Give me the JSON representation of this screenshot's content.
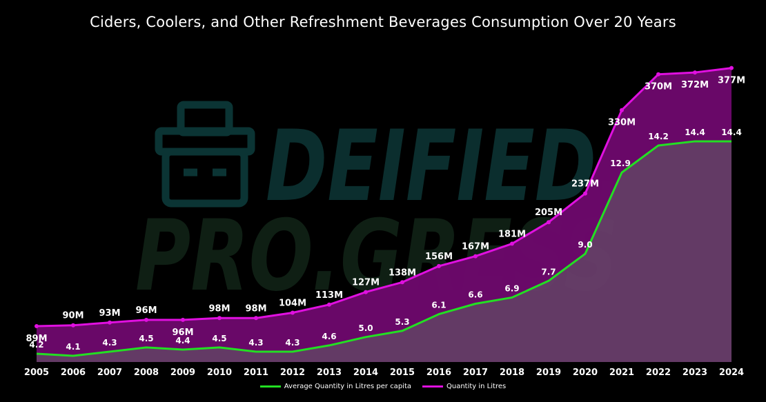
{
  "colors": {
    "background": "#000000",
    "per_capita_line": "#22e022",
    "quantity_line": "#e010e0",
    "quantity_area": "#6b3f6e",
    "band_fill": "#6a0068"
  },
  "watermark": {
    "line1": "DEIFIED.",
    "line2": "PRO.GRESS"
  },
  "chart_data": {
    "type": "line",
    "title": "Ciders, Coolers, and Other Refreshment Beverages Consumption Over 20 Years",
    "x": [
      "2005",
      "2006",
      "2007",
      "2008",
      "2009",
      "2010",
      "2011",
      "2012",
      "2013",
      "2014",
      "2015",
      "2016",
      "2017",
      "2018",
      "2019",
      "2020",
      "2021",
      "2022",
      "2023",
      "2024"
    ],
    "series": [
      {
        "name": "Average Quantity in Litres per capita",
        "values": [
          4.2,
          4.1,
          4.3,
          4.5,
          4.4,
          4.5,
          4.3,
          4.3,
          4.6,
          5.0,
          5.3,
          6.1,
          6.6,
          6.9,
          7.7,
          9.0,
          12.9,
          14.2,
          14.4,
          14.4
        ],
        "labels": [
          "4.2",
          "4.1",
          "4.3",
          "4.5",
          "4.4",
          "4.5",
          "4.3",
          "4.3",
          "4.6",
          "5.0",
          "5.3",
          "6.1",
          "6.6",
          "6.9",
          "7.7",
          "9.0",
          "12.9",
          "14.2",
          "14.4",
          "14.4"
        ]
      },
      {
        "name": "Quantity in Litres",
        "values": [
          89,
          90,
          93,
          96,
          96,
          98,
          98,
          104,
          113,
          127,
          138,
          156,
          167,
          181,
          205,
          237,
          330,
          370,
          372,
          377
        ],
        "unit": "M",
        "labels": [
          "89M",
          "90M",
          "93M",
          "96M",
          "96M",
          "98M",
          "98M",
          "104M",
          "113M",
          "127M",
          "138M",
          "156M",
          "167M",
          "181M",
          "205M",
          "237M",
          "330M",
          "370M",
          "372M",
          "377M"
        ]
      }
    ],
    "legend_position": "bottom-center",
    "grid": false
  }
}
